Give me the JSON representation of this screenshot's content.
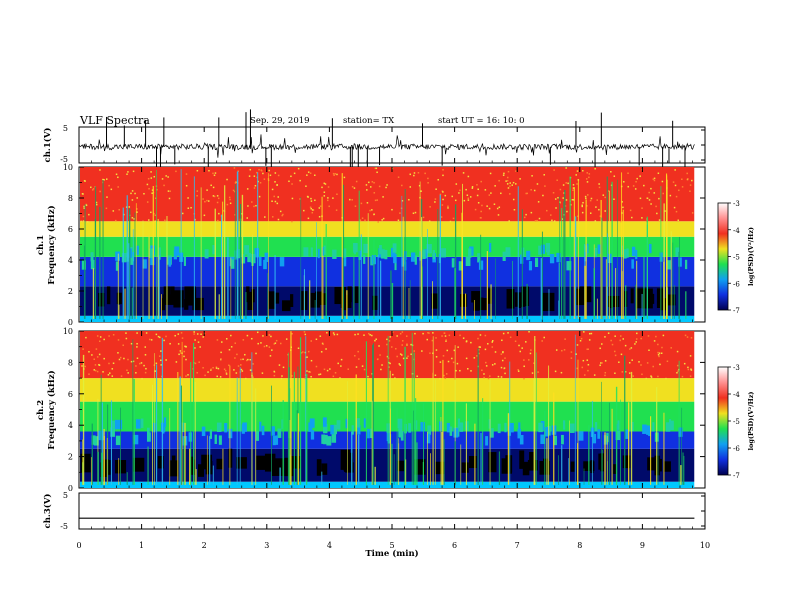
{
  "header": {
    "title": "VLF Spectra",
    "date": "Sep. 29, 2019",
    "station": "station= TX",
    "start": "start  UT =  16: 10: 0"
  },
  "chart_data": [
    {
      "type": "line",
      "id": "ch1-waveform",
      "ylabel": "ch.1(V)",
      "ylim": [
        -5,
        5
      ],
      "yticks": [
        "5",
        "-5"
      ],
      "xlim": [
        0,
        10
      ],
      "x_extent": [
        0,
        9.83
      ],
      "baseline": -0.5,
      "series": [
        {
          "values": []
        }
      ]
    },
    {
      "type": "heatmap",
      "id": "ch1-spectrogram",
      "ylabel": "Frequency (kHz)",
      "ylabel_prefix": "ch.1",
      "ylim": [
        0,
        10
      ],
      "yticks": [
        "0",
        "2",
        "4",
        "6",
        "8",
        "10"
      ],
      "xlim": [
        0,
        10
      ],
      "x_extent": [
        0,
        9.83
      ],
      "colorbar": {
        "label": "log(PSD)(V²/Hz)",
        "range": [
          -7,
          -3
        ],
        "ticks": [
          "-3",
          "-4",
          "-5",
          "-6",
          "-7"
        ]
      },
      "bands_khz": {
        "dark_blue": [
          0.4,
          2.3
        ],
        "blue": [
          2.3,
          4.2
        ],
        "green": [
          4.2,
          5.5
        ],
        "yellow": [
          5.5,
          6.5
        ],
        "red": [
          6.5,
          10
        ]
      }
    },
    {
      "type": "heatmap",
      "id": "ch2-spectrogram",
      "ylabel": "Frequency (kHz)",
      "ylabel_prefix": "ch.2",
      "ylim": [
        0,
        10
      ],
      "yticks": [
        "0",
        "2",
        "4",
        "6",
        "8",
        "10"
      ],
      "xlim": [
        0,
        10
      ],
      "x_extent": [
        0,
        9.83
      ],
      "colorbar": {
        "label": "log(PSD)(V²/Hz)",
        "range": [
          -7,
          -3
        ],
        "ticks": [
          "-3",
          "-4",
          "-5",
          "-6",
          "-7"
        ]
      },
      "bands_khz": {
        "dark_blue": [
          0.4,
          2.5
        ],
        "blue": [
          2.5,
          3.6
        ],
        "green": [
          3.6,
          5.5
        ],
        "yellow": [
          5.5,
          7.0
        ],
        "red": [
          7.0,
          10
        ]
      }
    },
    {
      "type": "line",
      "id": "ch3-waveform",
      "ylabel": "ch.3(V)",
      "ylim": [
        -5,
        5
      ],
      "yticks": [
        "5",
        "-5"
      ],
      "xlim": [
        0,
        10
      ],
      "x_extent": [
        0,
        9.83
      ],
      "baseline": -2,
      "series": [
        {
          "values": []
        }
      ]
    }
  ],
  "xaxis": {
    "label": "Time (min)",
    "ticks": [
      "0",
      "1",
      "2",
      "3",
      "4",
      "5",
      "6",
      "7",
      "8",
      "9",
      "10"
    ]
  }
}
